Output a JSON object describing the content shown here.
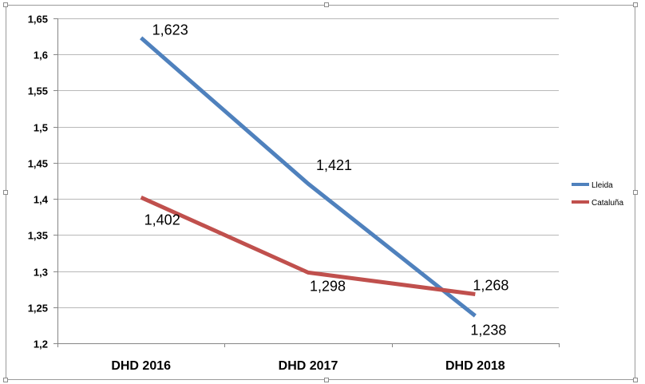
{
  "chart_data": {
    "type": "line",
    "title": "",
    "xlabel": "",
    "ylabel": "",
    "categories": [
      "DHD 2016",
      "DHD 2017",
      "DHD 2018"
    ],
    "ylim": [
      1.2,
      1.65
    ],
    "ystep": 0.05,
    "yticks": [
      "1,2",
      "1,25",
      "1,3",
      "1,35",
      "1,4",
      "1,45",
      "1,5",
      "1,55",
      "1,6",
      "1,65"
    ],
    "grid": true,
    "legend_position": "right",
    "series": [
      {
        "name": "Lleida",
        "color": "#4f81bd",
        "values": [
          1.623,
          1.421,
          1.238
        ],
        "labels": [
          "1,623",
          "1,421",
          "1,238"
        ]
      },
      {
        "name": "Cataluña",
        "color": "#c0504d",
        "values": [
          1.402,
          1.298,
          1.268
        ],
        "labels": [
          "1,402",
          "1,298",
          "1,268"
        ]
      }
    ]
  }
}
